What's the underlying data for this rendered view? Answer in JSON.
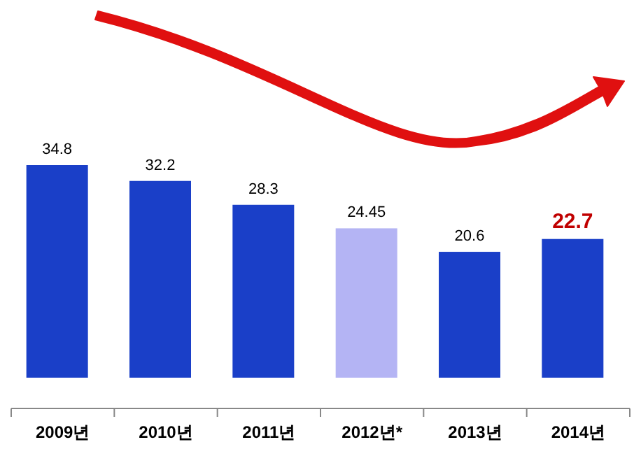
{
  "chart_data": {
    "type": "bar",
    "categories": [
      "2009년",
      "2010년",
      "2011년",
      "2012년*",
      "2013년",
      "2014년"
    ],
    "values": [
      34.8,
      32.2,
      28.3,
      24.45,
      20.6,
      22.7
    ],
    "colors": [
      "#1a3fc8",
      "#1a3fc8",
      "#1a3fc8",
      "#b4b4f4",
      "#1a3fc8",
      "#1a3fc8"
    ],
    "data_labels": true
  }
}
